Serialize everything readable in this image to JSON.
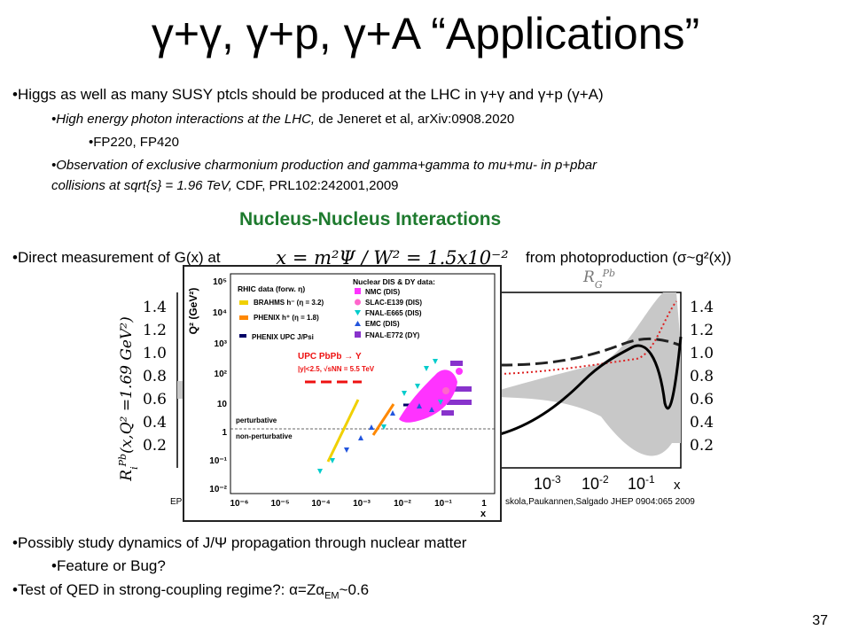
{
  "slide": {
    "title": "γ+γ, γ+p, γ+A “Applications”",
    "page_number": "37"
  },
  "bullets": {
    "b1": "•Higgs as well as many SUSY ptcls should be produced at the LHC in γ+γ and γ+p (γ+A)",
    "b1_sub1_italic": "•High energy photon interactions at the LHC,",
    "b1_sub1_plain": " de Jeneret et al, arXiv:0908.2020",
    "b1_sub1_sub": "•FP220, FP420",
    "b1_sub2_italic_line1": "•Observation of exclusive charmonium production and gamma+gamma to mu+mu- in p+pbar",
    "b1_sub2_italic_line2": "collisions at sqrt{s} = 1.96 TeV,",
    "b1_sub2_plain_line2": " CDF, PRL102:242001,2009",
    "section_heading": "Nucleus-Nucleus Interactions",
    "b2_prefix": "•Direct measurement of G(x) at",
    "b2_formula": "x = m²Ψ / W² = 1.5x10⁻²",
    "b2_suffix": "from photoproduction (σ~g²(x))",
    "b3": "•Possibly study dynamics of J/Ψ propagation through nuclear matter",
    "b3_sub": "•Feature or Bug?",
    "b4": "•Test of QED in strong-coupling regime?:  α=Zα",
    "b4_subscript": "EM",
    "b4_suffix": "~0.6"
  },
  "figure": {
    "left_axis_label": "R",
    "left_axis_sub": "i",
    "left_axis_sup": "Pb",
    "left_axis_arg": "(x,Q² =1.69 GeV²)",
    "left_ticks": [
      "1.4",
      "1.2",
      "1.0",
      "0.8",
      "0.6",
      "0.4",
      "0.2"
    ],
    "right_axis_label": "R",
    "right_axis_sub": "G",
    "right_axis_sup": "Pb",
    "right_ticks": [
      "1.4",
      "1.2",
      "1.0",
      "0.8",
      "0.6",
      "0.4",
      "0.2"
    ],
    "x_ticks_base": [
      "10",
      "10",
      "10"
    ],
    "x_ticks_exp": [
      "-3",
      "-2",
      "-1"
    ],
    "x_label": "x",
    "cite_left": "EP",
    "cite_right": "skola,Paukannen,Salgado JHEP 0904:065  2009",
    "colors": {
      "band": "#c8c8c8",
      "solid": "#000000",
      "dashed": "#222222",
      "dotted": "#dd2222"
    }
  },
  "inset": {
    "y_axis_label": "Q² (GeV²)",
    "y_ticks": [
      "10⁵",
      "10⁴",
      "10³",
      "10²",
      "10",
      "1",
      "10⁻¹",
      "10⁻²"
    ],
    "x_ticks": [
      "10⁻⁶",
      "10⁻⁵",
      "10⁻⁴",
      "10⁻³",
      "10⁻²",
      "10⁻¹",
      "1"
    ],
    "x_label": "x",
    "rhic_heading": "RHIC data (forw. η)",
    "brahms": "BRAHMS h⁻ (η = 3.2)",
    "phenix": "PHENIX h⁺ (η = 1.8)",
    "phenix_upc": "PHENIX UPC J/Psi",
    "upc_title": "UPC PbPb → Υ",
    "upc_cond": "|y|<2.5, √sNN = 5.5 TeV",
    "nuclear_heading": "Nuclear DIS & DY data:",
    "nuclear_items": [
      "NMC (DIS)",
      "SLAC-E139 (DIS)",
      "FNAL-E665 (DIS)",
      "EMC (DIS)",
      "FNAL-E772 (DY)"
    ],
    "perturbative": "perturbative",
    "non_perturbative": "non-perturbative",
    "colors": {
      "nmc": "#ff33ff",
      "slac": "#ff66cc",
      "fnal665": "#00cccc",
      "emc": "#2255dd",
      "fnal772": "#8833cc",
      "brahms": "#f0d000",
      "phenix": "#ff8800",
      "upc": "#000066",
      "upc_text": "#ee1111"
    }
  }
}
